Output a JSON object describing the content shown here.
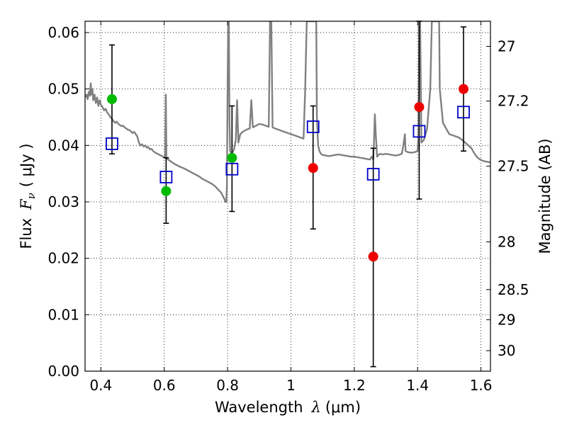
{
  "chart_data": {
    "type": "scatter",
    "title": "",
    "xlabel_prefix": "Wavelength",
    "xlabel_symbol": "λ",
    "xlabel_unit": "(μm)",
    "ylabel_prefix": "Flux",
    "ylabel_symbol": "F",
    "ylabel_sub": "ν",
    "ylabel_unit": "( μJy )",
    "ylabel_right": "Magnitude (AB)",
    "xlim": [
      0.35,
      1.63
    ],
    "ylim": [
      0.0,
      0.062
    ],
    "grid": true,
    "x_ticks": [
      {
        "value": 0.4,
        "label": "0.4"
      },
      {
        "value": 0.6,
        "label": "0.6"
      },
      {
        "value": 0.8,
        "label": "0.8"
      },
      {
        "value": 1.0,
        "label": "1"
      },
      {
        "value": 1.2,
        "label": "1.2"
      },
      {
        "value": 1.4,
        "label": "1.4"
      },
      {
        "value": 1.6,
        "label": "1.6"
      }
    ],
    "y_ticks": [
      {
        "value": 0.0,
        "label": "0.00"
      },
      {
        "value": 0.01,
        "label": "0.01"
      },
      {
        "value": 0.02,
        "label": "0.02"
      },
      {
        "value": 0.03,
        "label": "0.03"
      },
      {
        "value": 0.04,
        "label": "0.04"
      },
      {
        "value": 0.05,
        "label": "0.05"
      },
      {
        "value": 0.06,
        "label": "0.06"
      }
    ],
    "magnitude_ticks": [
      {
        "mag": 27,
        "label": "27"
      },
      {
        "mag": 27.2,
        "label": "27.2"
      },
      {
        "mag": 27.5,
        "label": "27.5"
      },
      {
        "mag": 28,
        "label": "28"
      },
      {
        "mag": 28.5,
        "label": "28.5"
      },
      {
        "mag": 29,
        "label": "29"
      },
      {
        "mag": 30,
        "label": "30"
      }
    ],
    "model_spectrum": {
      "color": "#808080",
      "points": [
        [
          0.35,
          0.0485
        ],
        [
          0.355,
          0.049
        ],
        [
          0.358,
          0.0482
        ],
        [
          0.362,
          0.0495
        ],
        [
          0.365,
          0.0488
        ],
        [
          0.368,
          0.051
        ],
        [
          0.37,
          0.049
        ],
        [
          0.373,
          0.05
        ],
        [
          0.376,
          0.048
        ],
        [
          0.38,
          0.049
        ],
        [
          0.384,
          0.0475
        ],
        [
          0.388,
          0.0485
        ],
        [
          0.392,
          0.047
        ],
        [
          0.396,
          0.048
        ],
        [
          0.4,
          0.0472
        ],
        [
          0.405,
          0.0468
        ],
        [
          0.41,
          0.0462
        ],
        [
          0.415,
          0.0465
        ],
        [
          0.42,
          0.0458
        ],
        [
          0.425,
          0.0455
        ],
        [
          0.43,
          0.045
        ],
        [
          0.435,
          0.0447
        ],
        [
          0.44,
          0.0443
        ],
        [
          0.445,
          0.044
        ],
        [
          0.45,
          0.0442
        ],
        [
          0.455,
          0.0438
        ],
        [
          0.46,
          0.0436
        ],
        [
          0.465,
          0.0434
        ],
        [
          0.47,
          0.0435
        ],
        [
          0.475,
          0.0432
        ],
        [
          0.48,
          0.043
        ],
        [
          0.485,
          0.0428
        ],
        [
          0.49,
          0.0427
        ],
        [
          0.495,
          0.0425
        ],
        [
          0.5,
          0.0422
        ],
        [
          0.505,
          0.0424
        ],
        [
          0.51,
          0.042
        ],
        [
          0.515,
          0.0416
        ],
        [
          0.52,
          0.0405
        ],
        [
          0.525,
          0.04
        ],
        [
          0.53,
          0.0402
        ],
        [
          0.535,
          0.0398
        ],
        [
          0.54,
          0.04
        ],
        [
          0.545,
          0.0396
        ],
        [
          0.55,
          0.0397
        ],
        [
          0.555,
          0.0393
        ],
        [
          0.56,
          0.0394
        ],
        [
          0.565,
          0.039
        ],
        [
          0.57,
          0.0388
        ],
        [
          0.575,
          0.0386
        ],
        [
          0.58,
          0.0385
        ],
        [
          0.585,
          0.0383
        ],
        [
          0.59,
          0.0382
        ],
        [
          0.595,
          0.038
        ],
        [
          0.6,
          0.038
        ],
        [
          0.603,
          0.0378
        ],
        [
          0.605,
          0.049
        ],
        [
          0.607,
          0.0378
        ],
        [
          0.61,
          0.0376
        ],
        [
          0.62,
          0.0372
        ],
        [
          0.63,
          0.0368
        ],
        [
          0.64,
          0.0365
        ],
        [
          0.65,
          0.0362
        ],
        [
          0.66,
          0.036
        ],
        [
          0.67,
          0.0357
        ],
        [
          0.68,
          0.0354
        ],
        [
          0.69,
          0.0351
        ],
        [
          0.7,
          0.0348
        ],
        [
          0.71,
          0.0345
        ],
        [
          0.72,
          0.0341
        ],
        [
          0.73,
          0.0338
        ],
        [
          0.74,
          0.0335
        ],
        [
          0.75,
          0.0332
        ],
        [
          0.76,
          0.0328
        ],
        [
          0.77,
          0.0322
        ],
        [
          0.78,
          0.0316
        ],
        [
          0.79,
          0.0305
        ],
        [
          0.793,
          0.03
        ],
        [
          0.796,
          0.03
        ],
        [
          0.798,
          0.033
        ],
        [
          0.8,
          0.05
        ],
        [
          0.802,
          0.062
        ],
        [
          0.804,
          0.062
        ],
        [
          0.806,
          0.044
        ],
        [
          0.808,
          0.039
        ],
        [
          0.812,
          0.0385
        ],
        [
          0.816,
          0.0388
        ],
        [
          0.82,
          0.0392
        ],
        [
          0.826,
          0.041
        ],
        [
          0.83,
          0.048
        ],
        [
          0.834,
          0.0405
        ],
        [
          0.84,
          0.042
        ],
        [
          0.85,
          0.0425
        ],
        [
          0.86,
          0.0428
        ],
        [
          0.87,
          0.043
        ],
        [
          0.875,
          0.048
        ],
        [
          0.88,
          0.0432
        ],
        [
          0.89,
          0.0435
        ],
        [
          0.9,
          0.0438
        ],
        [
          0.91,
          0.0437
        ],
        [
          0.92,
          0.0435
        ],
        [
          0.93,
          0.0433
        ],
        [
          0.934,
          0.062
        ],
        [
          0.938,
          0.062
        ],
        [
          0.942,
          0.0432
        ],
        [
          0.95,
          0.043
        ],
        [
          0.96,
          0.0428
        ],
        [
          0.97,
          0.0426
        ],
        [
          0.98,
          0.0424
        ],
        [
          0.99,
          0.0422
        ],
        [
          1.0,
          0.042
        ],
        [
          1.01,
          0.0418
        ],
        [
          1.02,
          0.0416
        ],
        [
          1.03,
          0.0414
        ],
        [
          1.04,
          0.0412
        ],
        [
          1.045,
          0.05
        ],
        [
          1.05,
          0.062
        ],
        [
          1.055,
          0.062
        ],
        [
          1.06,
          0.062
        ],
        [
          1.065,
          0.062
        ],
        [
          1.075,
          0.062
        ],
        [
          1.08,
          0.062
        ],
        [
          1.082,
          0.045
        ],
        [
          1.086,
          0.04
        ],
        [
          1.09,
          0.039
        ],
        [
          1.095,
          0.0385
        ],
        [
          1.1,
          0.0383
        ],
        [
          1.11,
          0.0382
        ],
        [
          1.12,
          0.0381
        ],
        [
          1.13,
          0.0382
        ],
        [
          1.14,
          0.0383
        ],
        [
          1.15,
          0.0384
        ],
        [
          1.16,
          0.0383
        ],
        [
          1.17,
          0.0382
        ],
        [
          1.18,
          0.0381
        ],
        [
          1.19,
          0.038
        ],
        [
          1.2,
          0.038
        ],
        [
          1.21,
          0.0379
        ],
        [
          1.22,
          0.0378
        ],
        [
          1.23,
          0.0377
        ],
        [
          1.24,
          0.0376
        ],
        [
          1.25,
          0.0375
        ],
        [
          1.255,
          0.038
        ],
        [
          1.26,
          0.0375
        ],
        [
          1.263,
          0.042
        ],
        [
          1.265,
          0.0455
        ],
        [
          1.268,
          0.042
        ],
        [
          1.272,
          0.038
        ],
        [
          1.28,
          0.0385
        ],
        [
          1.29,
          0.0384
        ],
        [
          1.3,
          0.0385
        ],
        [
          1.31,
          0.0384
        ],
        [
          1.32,
          0.0383
        ],
        [
          1.33,
          0.0382
        ],
        [
          1.34,
          0.0383
        ],
        [
          1.35,
          0.0385
        ],
        [
          1.355,
          0.04
        ],
        [
          1.36,
          0.042
        ],
        [
          1.362,
          0.039
        ],
        [
          1.37,
          0.0388
        ],
        [
          1.38,
          0.0387
        ],
        [
          1.39,
          0.0388
        ],
        [
          1.4,
          0.039
        ],
        [
          1.403,
          0.042
        ],
        [
          1.405,
          0.062
        ],
        [
          1.408,
          0.062
        ],
        [
          1.412,
          0.0405
        ],
        [
          1.42,
          0.041
        ],
        [
          1.43,
          0.043
        ],
        [
          1.44,
          0.05
        ],
        [
          1.445,
          0.062
        ],
        [
          1.46,
          0.062
        ],
        [
          1.468,
          0.062
        ],
        [
          1.47,
          0.05
        ],
        [
          1.48,
          0.044
        ],
        [
          1.49,
          0.043
        ],
        [
          1.5,
          0.042
        ],
        [
          1.51,
          0.0418
        ],
        [
          1.52,
          0.0416
        ],
        [
          1.53,
          0.0414
        ],
        [
          1.54,
          0.041
        ],
        [
          1.55,
          0.0405
        ],
        [
          1.56,
          0.04
        ],
        [
          1.57,
          0.0395
        ],
        [
          1.58,
          0.0385
        ],
        [
          1.59,
          0.0378
        ],
        [
          1.6,
          0.0374
        ],
        [
          1.61,
          0.0372
        ],
        [
          1.62,
          0.0371
        ],
        [
          1.63,
          0.037
        ]
      ]
    },
    "series": [
      {
        "marker": "square",
        "color": "#0000cc",
        "points": [
          {
            "x": 0.435,
            "y": 0.0403
          },
          {
            "x": 0.606,
            "y": 0.0344
          },
          {
            "x": 0.814,
            "y": 0.0358
          },
          {
            "x": 1.07,
            "y": 0.0433
          },
          {
            "x": 1.26,
            "y": 0.0349
          },
          {
            "x": 1.405,
            "y": 0.0425
          },
          {
            "x": 1.545,
            "y": 0.0459
          }
        ]
      },
      {
        "marker": "circle",
        "color": "#00bb00",
        "points": [
          {
            "x": 0.435,
            "y": 0.0482,
            "err_lo": 0.0385,
            "err_hi": 0.0578
          },
          {
            "x": 0.606,
            "y": 0.0319,
            "err_lo": 0.0262,
            "err_hi": 0.0378
          },
          {
            "x": 0.814,
            "y": 0.0378,
            "err_lo": 0.0283,
            "err_hi": 0.047
          }
        ]
      },
      {
        "marker": "circle",
        "color": "#ee0000",
        "points": [
          {
            "x": 1.07,
            "y": 0.036,
            "err_lo": 0.0252,
            "err_hi": 0.047
          },
          {
            "x": 1.26,
            "y": 0.0203,
            "err_lo": 0.0008,
            "err_hi": 0.0395
          },
          {
            "x": 1.405,
            "y": 0.0468,
            "err_lo": 0.0305,
            "err_hi": 0.062
          },
          {
            "x": 1.545,
            "y": 0.05,
            "err_lo": 0.039,
            "err_hi": 0.061
          }
        ]
      }
    ]
  }
}
